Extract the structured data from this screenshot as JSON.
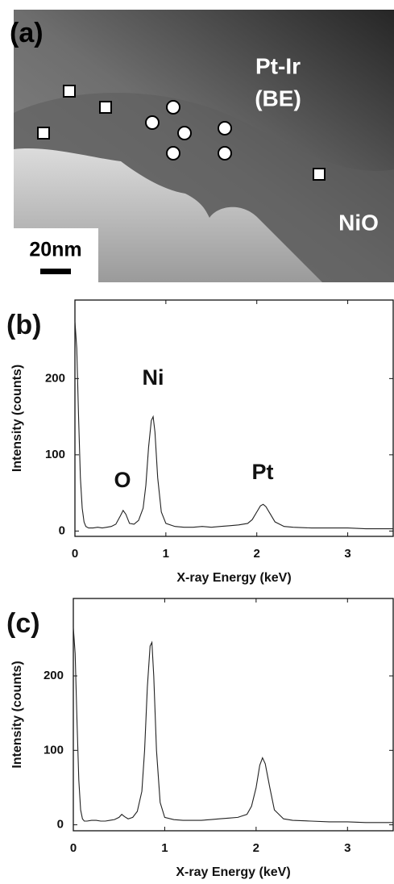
{
  "image_panel": {
    "label": "(a)",
    "annotations": [
      "Pt-Ir",
      "(BE)",
      "NiO"
    ],
    "scale_bar": "20nm"
  },
  "chart_data": [
    {
      "type": "line",
      "panel_label": "(b)",
      "x_label": "X-ray Energy (keV)",
      "y_label": "Intensity (counts)",
      "annotations": [
        "Ni",
        "O",
        "Pt"
      ],
      "x": [
        0,
        0.02,
        0.04,
        0.06,
        0.08,
        0.1,
        0.12,
        0.15,
        0.2,
        0.25,
        0.3,
        0.35,
        0.4,
        0.45,
        0.5,
        0.53,
        0.56,
        0.6,
        0.65,
        0.7,
        0.75,
        0.78,
        0.81,
        0.84,
        0.86,
        0.88,
        0.91,
        0.95,
        1.0,
        1.1,
        1.2,
        1.3,
        1.4,
        1.5,
        1.6,
        1.7,
        1.8,
        1.9,
        1.95,
        2.0,
        2.04,
        2.07,
        2.1,
        2.15,
        2.2,
        2.3,
        2.4,
        2.6,
        2.8,
        3.0,
        3.2,
        3.4,
        3.5
      ],
      "series": [
        {
          "color": "#222222",
          "values": [
            275,
            240,
            150,
            70,
            30,
            12,
            6,
            4,
            4,
            5,
            4,
            5,
            6,
            9,
            20,
            27,
            22,
            10,
            9,
            14,
            30,
            60,
            110,
            145,
            150,
            130,
            70,
            25,
            10,
            6,
            5,
            5,
            6,
            5,
            6,
            7,
            8,
            10,
            15,
            25,
            33,
            35,
            32,
            22,
            12,
            6,
            5,
            4,
            4,
            4,
            3,
            3,
            3
          ]
        }
      ],
      "xlim": [
        0,
        3.5
      ],
      "ylim": [
        -7,
        303
      ],
      "xticks": [
        0,
        1,
        2,
        3
      ],
      "yticks": [
        0,
        100,
        200
      ],
      "grid": false
    },
    {
      "type": "line",
      "panel_label": "(c)",
      "x_label": "X-ray Energy (keV)",
      "y_label": "Intensity (counts)",
      "x": [
        0,
        0.02,
        0.04,
        0.06,
        0.08,
        0.1,
        0.12,
        0.15,
        0.2,
        0.25,
        0.3,
        0.35,
        0.4,
        0.45,
        0.5,
        0.53,
        0.56,
        0.6,
        0.65,
        0.7,
        0.75,
        0.78,
        0.81,
        0.84,
        0.86,
        0.88,
        0.91,
        0.95,
        1.0,
        1.1,
        1.2,
        1.3,
        1.4,
        1.5,
        1.6,
        1.7,
        1.8,
        1.9,
        1.95,
        2.0,
        2.04,
        2.07,
        2.1,
        2.15,
        2.2,
        2.3,
        2.4,
        2.6,
        2.8,
        3.0,
        3.2,
        3.4,
        3.5
      ],
      "series": [
        {
          "color": "#222222",
          "values": [
            265,
            230,
            140,
            60,
            20,
            8,
            5,
            5,
            6,
            6,
            5,
            5,
            6,
            7,
            10,
            14,
            11,
            8,
            10,
            18,
            45,
            100,
            185,
            240,
            245,
            200,
            100,
            30,
            10,
            7,
            6,
            6,
            6,
            7,
            8,
            9,
            10,
            14,
            25,
            50,
            80,
            90,
            82,
            50,
            20,
            8,
            6,
            5,
            4,
            4,
            3,
            3,
            3
          ]
        }
      ],
      "xlim": [
        0,
        3.5
      ],
      "ylim": [
        -8,
        304
      ],
      "xticks": [
        0,
        1,
        2,
        3
      ],
      "yticks": [
        0,
        100,
        200
      ],
      "grid": false
    }
  ]
}
